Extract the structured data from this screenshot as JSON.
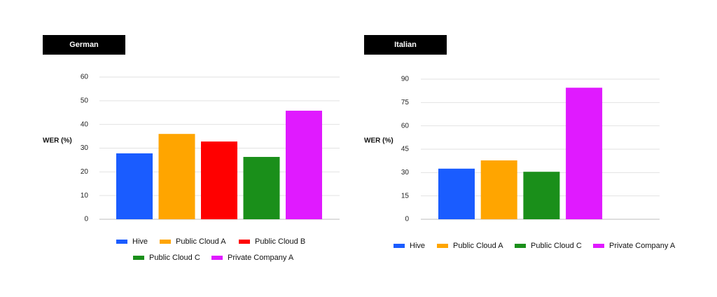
{
  "chart_data": [
    {
      "type": "bar",
      "title": "German",
      "ylabel": "WER (%)",
      "xlabel": "",
      "ylim": [
        0,
        60
      ],
      "yticks": [
        0,
        10,
        20,
        30,
        40,
        50,
        60
      ],
      "grid": true,
      "legend_position": "bottom",
      "series": [
        {
          "name": "Hive",
          "value": 27.8,
          "color": "#1a5cff"
        },
        {
          "name": "Public Cloud A",
          "value": 36.0,
          "color": "#ffa500"
        },
        {
          "name": "Public Cloud B",
          "value": 32.8,
          "color": "#ff0000"
        },
        {
          "name": "Public Cloud C",
          "value": 26.3,
          "color": "#1a8f1a"
        },
        {
          "name": "Private Company A",
          "value": 45.8,
          "color": "#e01aff"
        }
      ]
    },
    {
      "type": "bar",
      "title": "Italian",
      "ylabel": "WER (%)",
      "xlabel": "",
      "ylim": [
        0,
        90
      ],
      "yticks": [
        0,
        15,
        30,
        45,
        60,
        75,
        90
      ],
      "grid": true,
      "legend_position": "bottom",
      "series": [
        {
          "name": "Hive",
          "value": 32.5,
          "color": "#1a5cff"
        },
        {
          "name": "Public Cloud A",
          "value": 37.8,
          "color": "#ffa500"
        },
        {
          "name": "Public Cloud C",
          "value": 30.5,
          "color": "#1a8f1a"
        },
        {
          "name": "Private Company A",
          "value": 84.5,
          "color": "#e01aff"
        }
      ]
    }
  ]
}
